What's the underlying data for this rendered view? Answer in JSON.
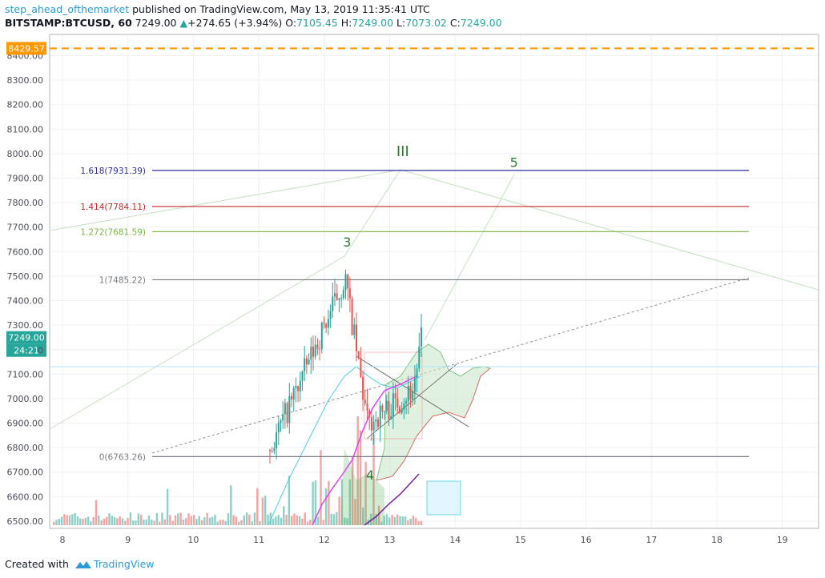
{
  "header": {
    "author": "step_ahead_ofthemarket",
    "published": "published on TradingView.com, May 13, 2019 11:35:41 UTC",
    "symbol": "BITSTAMP:BTCUSD, 60",
    "last": "7249.00",
    "change": "+274.65 (+3.94%)",
    "o_label": "O:",
    "o": "7105.45",
    "h_label": "H:",
    "h": "7249.00",
    "l_label": "L:",
    "l": "7073.02",
    "c_label": "C:",
    "c": "7249.00"
  },
  "footer": {
    "created_with": "Created with",
    "brand": "TradingView"
  },
  "colors": {
    "up": "#26a69a",
    "down": "#ef5350",
    "orange": "#ff9800",
    "navy": "#2f2fa0",
    "red_level": "#c62828",
    "green_level": "#7cb342",
    "grey_level": "#787b86",
    "wave": "#2e7d32",
    "magenta": "#e040fb",
    "purple": "#7b1fa2",
    "cyan": "#4dd0e1"
  },
  "chart_data": {
    "type": "candlestick",
    "x_ticks": [
      "8",
      "9",
      "10",
      "11",
      "12",
      "13",
      "14",
      "15",
      "16",
      "17",
      "18",
      "19"
    ],
    "y_ticks": [
      "8400.00",
      "8300.00",
      "8200.00",
      "8100.00",
      "8000.00",
      "7900.00",
      "7800.00",
      "7700.00",
      "7600.00",
      "7500.00",
      "7400.00",
      "7300.00",
      "7200.00",
      "7100.00",
      "7000.00",
      "6900.00",
      "6800.00",
      "6700.00",
      "6600.00",
      "6500.00"
    ],
    "ylim": [
      6470,
      8460
    ],
    "price_labels": {
      "alert": "8429.57",
      "last": "7249.00",
      "countdown": "24:21",
      "partial": "0"
    },
    "alert_line": 8429.57,
    "fib_levels": [
      {
        "label": "1.618(7931.39)",
        "value": 7931.39,
        "color": "#2f2fa0"
      },
      {
        "label": "1.414(7784.11)",
        "value": 7784.11,
        "color": "#c62828"
      },
      {
        "label": "1.272(7681.59)",
        "value": 7681.59,
        "color": "#7cb342"
      },
      {
        "label": "1(7485.22)",
        "value": 7485.22,
        "color": "#787b86"
      },
      {
        "label": "0(6763.26)",
        "value": 6763.26,
        "color": "#787b86"
      }
    ],
    "wave_labels": [
      {
        "text": "III",
        "x": 13.2,
        "y": 7990
      },
      {
        "text": "5",
        "x": 14.9,
        "y": 7945
      },
      {
        "text": "3",
        "x": 12.35,
        "y": 7620
      },
      {
        "text": "4",
        "x": 12.7,
        "y": 6670
      }
    ],
    "grid": true
  }
}
